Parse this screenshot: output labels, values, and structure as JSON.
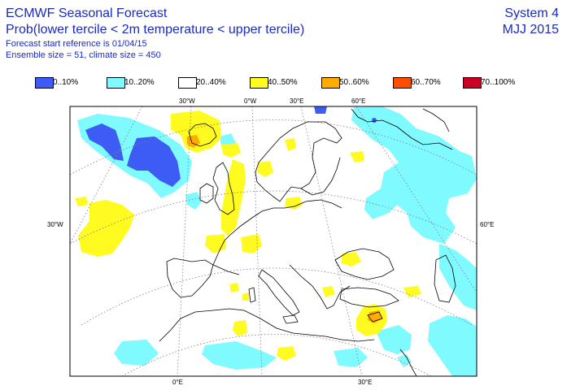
{
  "header": {
    "title": "ECMWF Seasonal Forecast",
    "subtitle": "Prob(lower tercile < 2m temperature < upper tercile)",
    "start_ref": "Forecast start reference is 01/04/15",
    "ensemble": "Ensemble size = 51, climate size = 450",
    "system": "System 4",
    "period": "MJJ 2015"
  },
  "legend": [
    {
      "label": "0..10%",
      "color": "#3d5cf5"
    },
    {
      "label": "10..20%",
      "color": "#7ffaff"
    },
    {
      "label": "20..40%",
      "color": "#ffffff"
    },
    {
      "label": "40..50%",
      "color": "#fffa1f"
    },
    {
      "label": "50..60%",
      "color": "#ffac00"
    },
    {
      "label": "60..70%",
      "color": "#ff4e00"
    },
    {
      "label": "70..100%",
      "color": "#cc0024"
    }
  ],
  "grid_labels": {
    "top": [
      "30°W",
      "0°W",
      "30°E",
      "60°E"
    ],
    "left": "30°W",
    "right": "60°E",
    "bottom": [
      "0°E",
      "30°E"
    ]
  }
}
